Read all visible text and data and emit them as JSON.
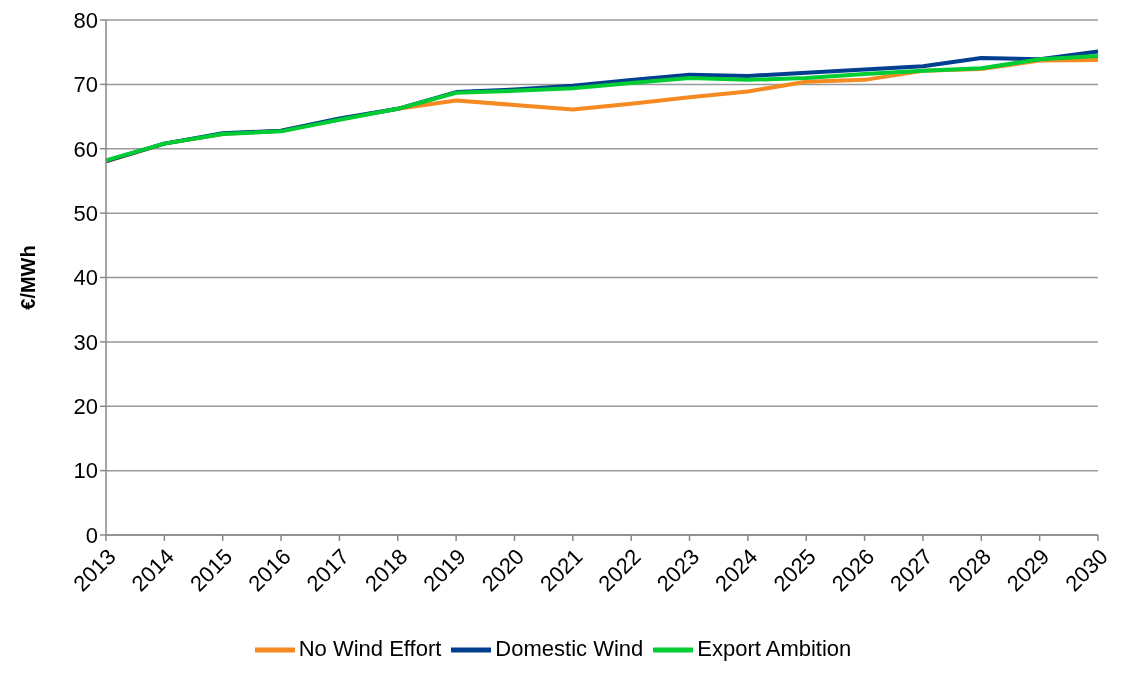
{
  "chart_data": {
    "type": "line",
    "ylabel": "€/MWh",
    "categories": [
      "2013",
      "2014",
      "2015",
      "2016",
      "2017",
      "2018",
      "2019",
      "2020",
      "2021",
      "2022",
      "2023",
      "2024",
      "2025",
      "2026",
      "2027",
      "2028",
      "2029",
      "2030"
    ],
    "series": [
      {
        "name": "No Wind Effort",
        "color": "#f58a22",
        "values": [
          58.0,
          60.8,
          62.3,
          62.8,
          64.6,
          66.2,
          67.5,
          66.8,
          66.1,
          67.0,
          68.0,
          68.9,
          70.4,
          70.7,
          72.1,
          72.4,
          73.7,
          73.8
        ]
      },
      {
        "name": "Domestic Wind",
        "color": "#003f8f",
        "values": [
          58.1,
          60.8,
          62.4,
          62.8,
          64.7,
          66.2,
          68.8,
          69.2,
          69.8,
          70.7,
          71.5,
          71.3,
          71.8,
          72.3,
          72.8,
          74.1,
          73.9,
          75.1
        ]
      },
      {
        "name": "Export Ambition",
        "color": "#00cc33",
        "values": [
          58.2,
          60.8,
          62.3,
          62.7,
          64.5,
          66.2,
          68.7,
          69.0,
          69.4,
          70.2,
          71.0,
          70.7,
          71.0,
          71.6,
          72.1,
          72.5,
          73.9,
          74.4
        ]
      }
    ],
    "ylim": [
      0,
      80
    ],
    "yticks": [
      0,
      10,
      20,
      30,
      40,
      50,
      60,
      70,
      80
    ],
    "grid": "y",
    "legend": "bottom",
    "marker": "none",
    "line_style": "solid"
  }
}
